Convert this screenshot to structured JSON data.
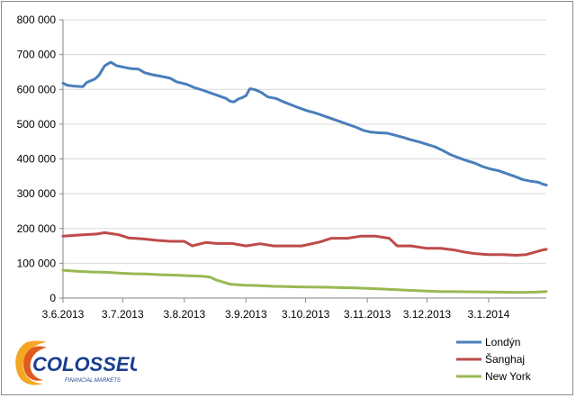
{
  "chart_data": {
    "type": "line",
    "title": "",
    "xlabel": "",
    "ylabel": "",
    "ylim": [
      0,
      800000
    ],
    "y_ticks": [
      0,
      100000,
      200000,
      300000,
      400000,
      500000,
      600000,
      700000,
      800000
    ],
    "y_tick_labels": [
      "0",
      "100 000",
      "200 000",
      "300 000",
      "400 000",
      "500 000",
      "600 000",
      "700 000",
      "800 000"
    ],
    "x_range": [
      "2013-06-03",
      "2014-02-01"
    ],
    "x_ticks": [
      "2013-06-03",
      "2013-07-03",
      "2013-08-03",
      "2013-09-03",
      "2013-10-03",
      "2013-11-03",
      "2013-12-03",
      "2014-01-03"
    ],
    "x_tick_labels": [
      "3.6.2013",
      "3.7.2013",
      "3.8.2013",
      "3.9.2013",
      "3.10.2013",
      "3.11.2013",
      "3.12.2013",
      "3.1.2014"
    ],
    "grid": "horizontal",
    "legend_position": "bottom-right",
    "series": [
      {
        "name": "Londýn",
        "color": "#4a7ebb",
        "points": [
          [
            "2013-06-03",
            618000
          ],
          [
            "2013-06-05",
            612000
          ],
          [
            "2013-06-09",
            609000
          ],
          [
            "2013-06-13",
            608000
          ],
          [
            "2013-06-15",
            620000
          ],
          [
            "2013-06-19",
            630000
          ],
          [
            "2013-06-21",
            640000
          ],
          [
            "2013-06-24",
            668000
          ],
          [
            "2013-06-27",
            678000
          ],
          [
            "2013-06-30",
            668000
          ],
          [
            "2013-07-05",
            662000
          ],
          [
            "2013-07-07",
            660000
          ],
          [
            "2013-07-11",
            658000
          ],
          [
            "2013-07-14",
            648000
          ],
          [
            "2013-07-18",
            642000
          ],
          [
            "2013-07-22",
            638000
          ],
          [
            "2013-07-27",
            632000
          ],
          [
            "2013-07-30",
            622000
          ],
          [
            "2013-08-04",
            615000
          ],
          [
            "2013-08-08",
            605000
          ],
          [
            "2013-08-12",
            598000
          ],
          [
            "2013-08-16",
            590000
          ],
          [
            "2013-08-20",
            582000
          ],
          [
            "2013-08-24",
            574000
          ],
          [
            "2013-08-26",
            566000
          ],
          [
            "2013-08-28",
            564000
          ],
          [
            "2013-08-30",
            572000
          ],
          [
            "2013-09-01",
            576000
          ],
          [
            "2013-09-03",
            582000
          ],
          [
            "2013-09-05",
            602000
          ],
          [
            "2013-09-07",
            600000
          ],
          [
            "2013-09-09",
            596000
          ],
          [
            "2013-09-11",
            590000
          ],
          [
            "2013-09-14",
            578000
          ],
          [
            "2013-09-18",
            574000
          ],
          [
            "2013-09-22",
            564000
          ],
          [
            "2013-09-26",
            555000
          ],
          [
            "2013-09-30",
            546000
          ],
          [
            "2013-10-04",
            538000
          ],
          [
            "2013-10-08",
            532000
          ],
          [
            "2013-10-12",
            524000
          ],
          [
            "2013-10-16",
            516000
          ],
          [
            "2013-10-20",
            508000
          ],
          [
            "2013-10-24",
            500000
          ],
          [
            "2013-10-28",
            492000
          ],
          [
            "2013-11-01",
            482000
          ],
          [
            "2013-11-05",
            477000
          ],
          [
            "2013-11-09",
            475000
          ],
          [
            "2013-11-13",
            474000
          ],
          [
            "2013-11-17",
            468000
          ],
          [
            "2013-11-21",
            462000
          ],
          [
            "2013-11-25",
            455000
          ],
          [
            "2013-11-29",
            449000
          ],
          [
            "2013-12-03",
            442000
          ],
          [
            "2013-12-07",
            435000
          ],
          [
            "2013-12-11",
            424000
          ],
          [
            "2013-12-15",
            412000
          ],
          [
            "2013-12-19",
            403000
          ],
          [
            "2013-12-23",
            395000
          ],
          [
            "2013-12-27",
            388000
          ],
          [
            "2013-12-31",
            378000
          ],
          [
            "2014-01-04",
            371000
          ],
          [
            "2014-01-08",
            366000
          ],
          [
            "2014-01-12",
            358000
          ],
          [
            "2014-01-16",
            350000
          ],
          [
            "2014-01-20",
            341000
          ],
          [
            "2014-01-24",
            336000
          ],
          [
            "2014-01-28",
            333000
          ],
          [
            "2014-01-30",
            328000
          ],
          [
            "2014-02-01",
            325000
          ]
        ]
      },
      {
        "name": "Šanghaj",
        "color": "#be4b48",
        "points": [
          [
            "2013-06-03",
            178000
          ],
          [
            "2013-06-08",
            180000
          ],
          [
            "2013-06-13",
            182000
          ],
          [
            "2013-06-20",
            184000
          ],
          [
            "2013-06-24",
            188000
          ],
          [
            "2013-07-01",
            182000
          ],
          [
            "2013-07-06",
            173000
          ],
          [
            "2013-07-13",
            170000
          ],
          [
            "2013-07-20",
            166000
          ],
          [
            "2013-07-27",
            163000
          ],
          [
            "2013-08-03",
            163000
          ],
          [
            "2013-08-07",
            150000
          ],
          [
            "2013-08-14",
            160000
          ],
          [
            "2013-08-19",
            157000
          ],
          [
            "2013-08-27",
            157000
          ],
          [
            "2013-09-03",
            150000
          ],
          [
            "2013-09-10",
            156000
          ],
          [
            "2013-09-17",
            150000
          ],
          [
            "2013-10-01",
            150000
          ],
          [
            "2013-10-10",
            161000
          ],
          [
            "2013-10-16",
            172000
          ],
          [
            "2013-10-24",
            172000
          ],
          [
            "2013-10-31",
            178000
          ],
          [
            "2013-11-07",
            178000
          ],
          [
            "2013-11-14",
            172000
          ],
          [
            "2013-11-18",
            150000
          ],
          [
            "2013-11-25",
            150000
          ],
          [
            "2013-12-03",
            143000
          ],
          [
            "2013-12-10",
            143000
          ],
          [
            "2013-12-17",
            138000
          ],
          [
            "2013-12-21",
            133000
          ],
          [
            "2013-12-27",
            128000
          ],
          [
            "2014-01-03",
            125000
          ],
          [
            "2014-01-10",
            125000
          ],
          [
            "2014-01-17",
            123000
          ],
          [
            "2014-01-22",
            125000
          ],
          [
            "2014-01-27",
            133000
          ],
          [
            "2014-01-30",
            138000
          ],
          [
            "2014-02-01",
            140000
          ]
        ]
      },
      {
        "name": "New York",
        "color": "#98b954",
        "points": [
          [
            "2013-06-03",
            80000
          ],
          [
            "2013-06-10",
            77000
          ],
          [
            "2013-06-17",
            75000
          ],
          [
            "2013-06-24",
            74000
          ],
          [
            "2013-07-01",
            72000
          ],
          [
            "2013-07-08",
            70000
          ],
          [
            "2013-07-15",
            69000
          ],
          [
            "2013-07-22",
            67000
          ],
          [
            "2013-07-29",
            66000
          ],
          [
            "2013-08-05",
            64000
          ],
          [
            "2013-08-12",
            63000
          ],
          [
            "2013-08-16",
            60000
          ],
          [
            "2013-08-19",
            52000
          ],
          [
            "2013-08-23",
            45000
          ],
          [
            "2013-08-26",
            40000
          ],
          [
            "2013-09-02",
            37000
          ],
          [
            "2013-09-09",
            36000
          ],
          [
            "2013-09-16",
            34000
          ],
          [
            "2013-09-30",
            32000
          ],
          [
            "2013-10-14",
            31000
          ],
          [
            "2013-10-28",
            29000
          ],
          [
            "2013-11-11",
            26000
          ],
          [
            "2013-11-25",
            22000
          ],
          [
            "2013-12-09",
            19000
          ],
          [
            "2013-12-23",
            18000
          ],
          [
            "2014-01-06",
            17000
          ],
          [
            "2014-01-20",
            16000
          ],
          [
            "2014-01-27",
            17000
          ],
          [
            "2014-02-01",
            19000
          ]
        ]
      }
    ]
  },
  "logo": {
    "name": "COLOSSEUM",
    "tagline": "FINANCIAL MARKETS"
  }
}
